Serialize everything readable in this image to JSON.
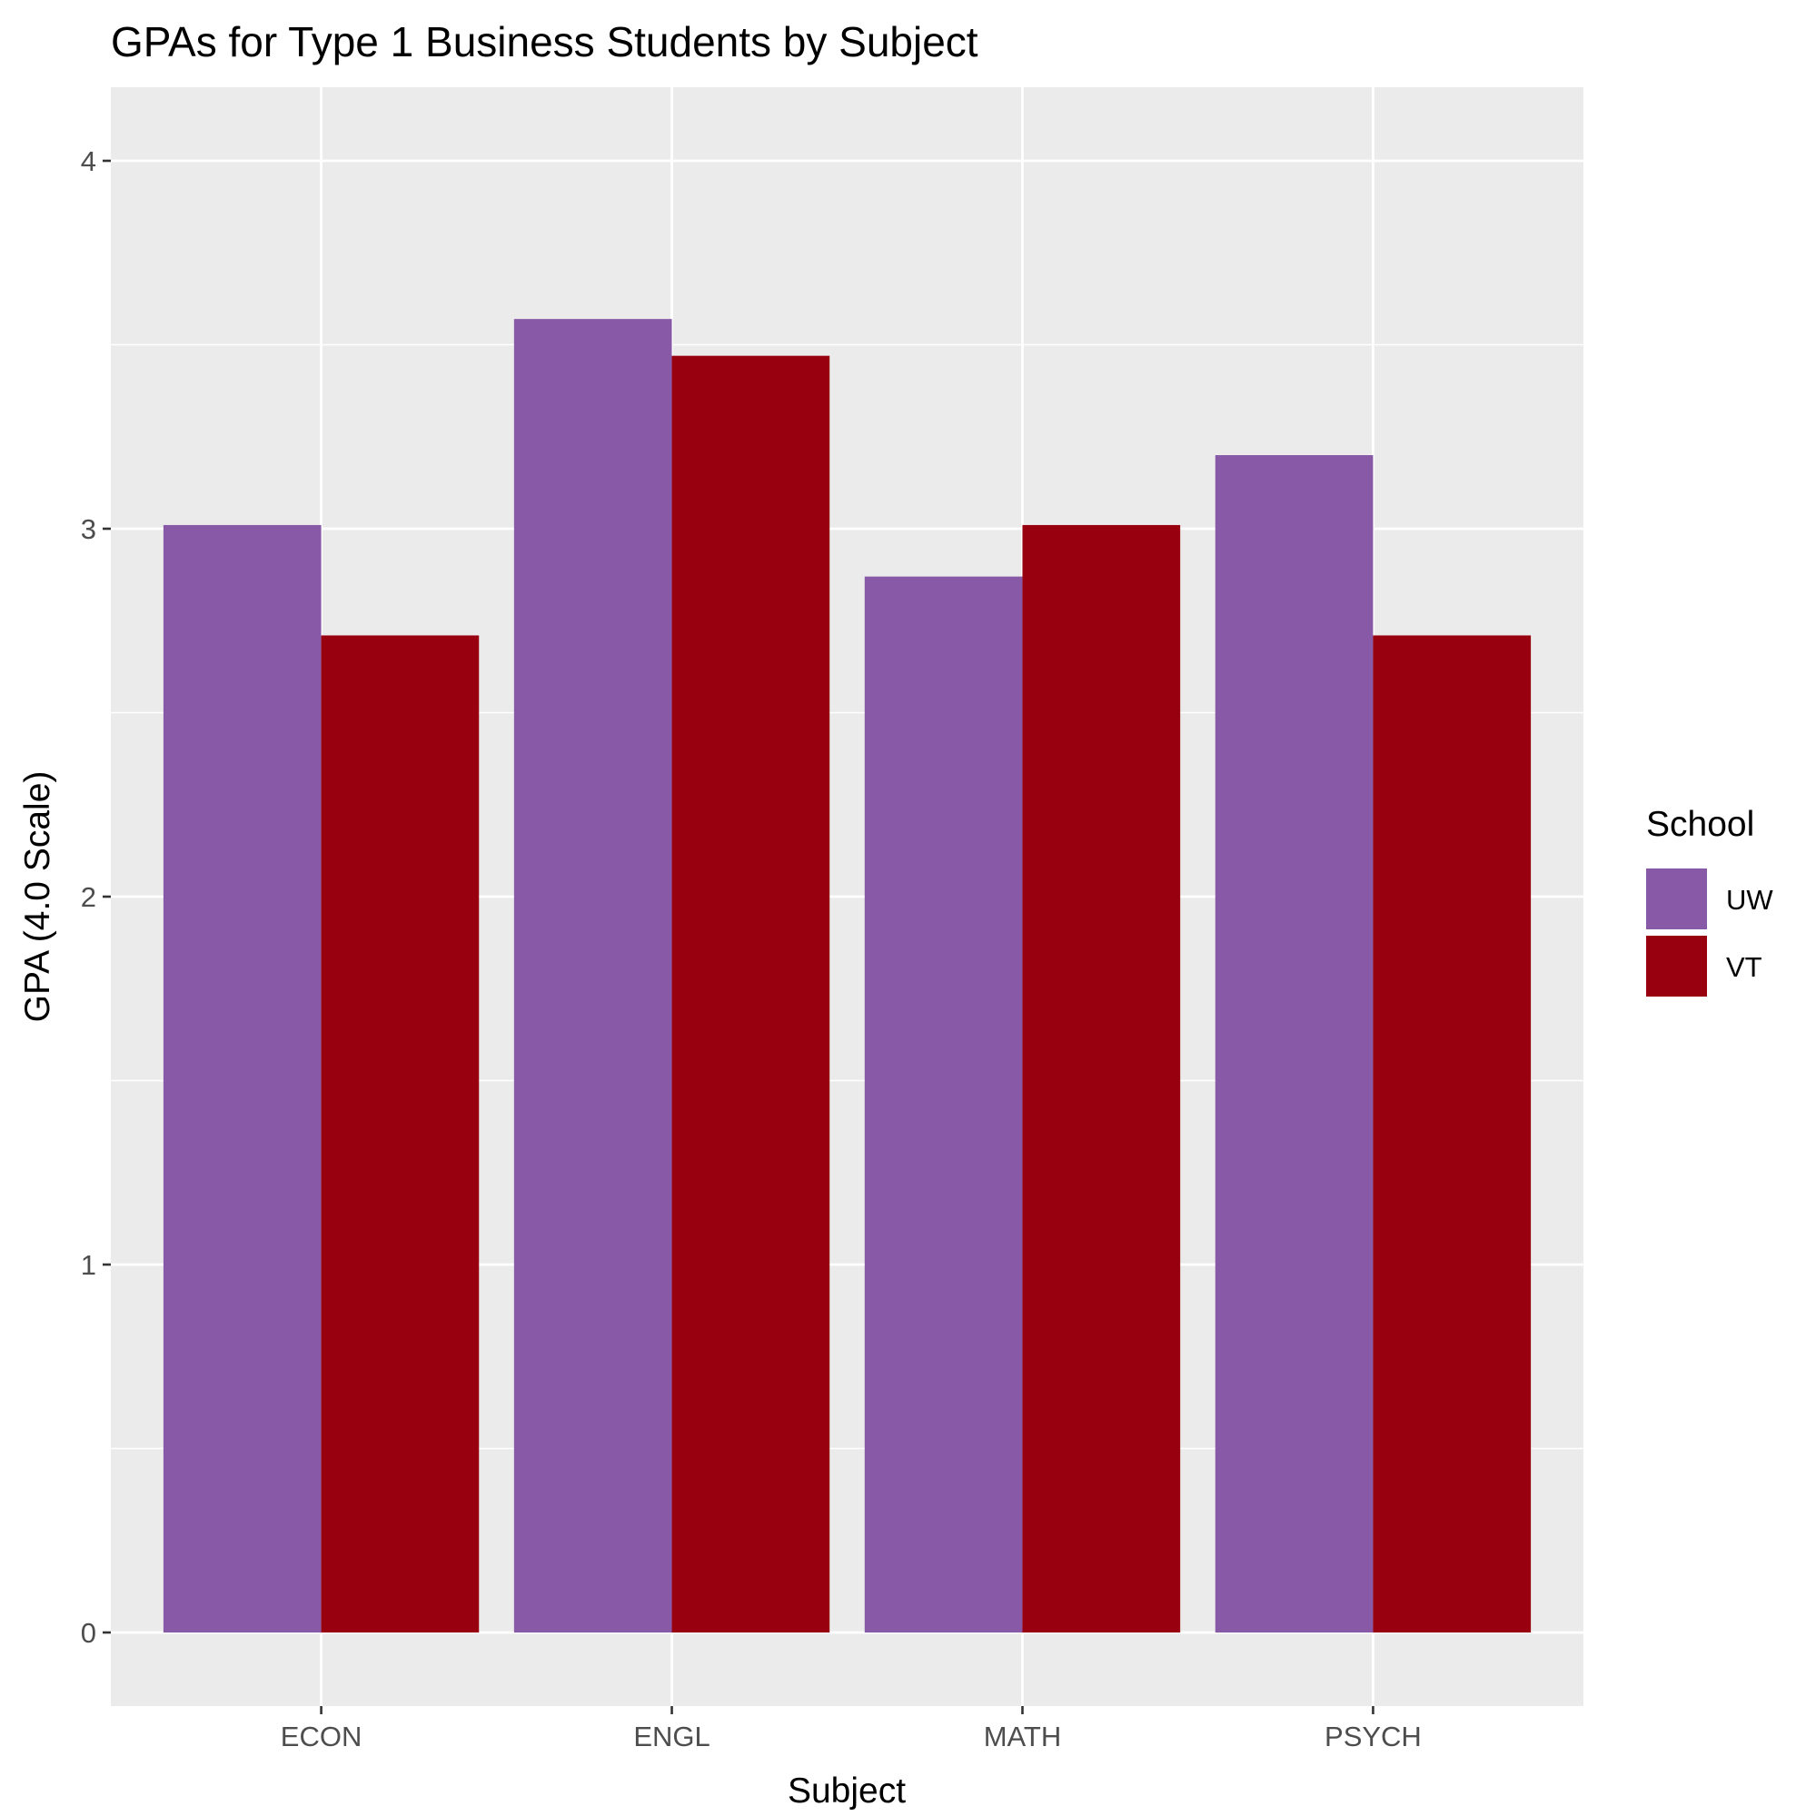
{
  "chart_data": {
    "type": "bar",
    "title": "GPAs for Type 1 Business Students by Subject",
    "xlabel": "Subject",
    "ylabel": "GPA (4.0 Scale)",
    "categories": [
      "ECON",
      "ENGL",
      "MATH",
      "PSYCH"
    ],
    "series": [
      {
        "name": "UW",
        "color": "#8859A6",
        "values": [
          3.01,
          3.57,
          2.87,
          3.2
        ]
      },
      {
        "name": "VT",
        "color": "#98000F",
        "values": [
          2.71,
          3.47,
          3.01,
          2.71
        ]
      }
    ],
    "ylim": [
      -0.2,
      4.2
    ],
    "yticks": [
      "0",
      "1",
      "2",
      "3",
      "4"
    ],
    "legend": {
      "title": "School",
      "position": "right"
    },
    "grid": true,
    "panel_color": "#EBEBEB"
  }
}
